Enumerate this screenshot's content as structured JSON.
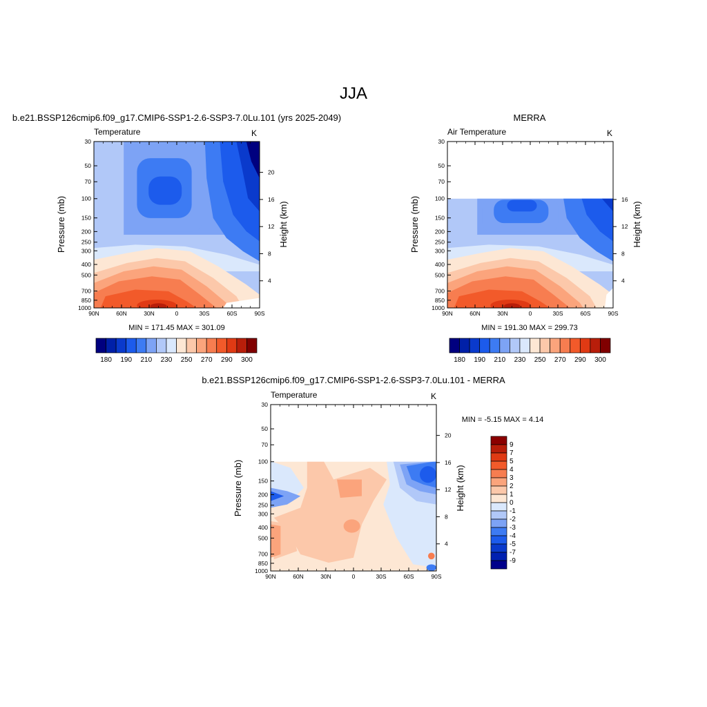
{
  "page_title": "JJA",
  "colors": {
    "abs": [
      "#00007f",
      "#0020a8",
      "#0a3acc",
      "#1c5bec",
      "#3d7bf3",
      "#7da3f5",
      "#b1c8f8",
      "#dae8fc",
      "#fde7d4",
      "#fcc8aa",
      "#fba47c",
      "#f77d50",
      "#f25a2a",
      "#e03a14",
      "#b81e0a",
      "#800000"
    ],
    "diff": [
      "#00008b",
      "#0020b0",
      "#0a3acc",
      "#1c5bec",
      "#3d7bf3",
      "#7da3f5",
      "#b1c8f8",
      "#dae8fc",
      "#fde7d4",
      "#fcc8aa",
      "#fba47c",
      "#f77d50",
      "#f25a2a",
      "#e03a14",
      "#b81e0a",
      "#8b0000"
    ]
  },
  "chart_data": [
    {
      "type": "heatmap",
      "title": "b.e21.BSSP126cmip6.f09_g17.CMIP6-SSP1-2.6-SSP3-7.0Lu.101 (yrs 2025-2049)",
      "left_label": "Temperature",
      "right_label": "K",
      "xlabel": "",
      "ylabel": "Pressure (mb)",
      "y2label": "Height (km)",
      "x_ticks": [
        "90N",
        "60N",
        "30N",
        "0",
        "30S",
        "60S",
        "90S"
      ],
      "y_ticks": [
        "30",
        "50",
        "70",
        "100",
        "150",
        "200",
        "250",
        "300",
        "400",
        "500",
        "700",
        "850",
        "1000"
      ],
      "y2_ticks": [
        "20",
        "16",
        "12",
        "8",
        "4"
      ],
      "stats": "MIN = 171.45  MAX = 301.09",
      "top_level_mb": 30,
      "colorbar_labels": [
        "180",
        "190",
        "210",
        "230",
        "250",
        "270",
        "290",
        "300"
      ],
      "colorbar_orientation": "horizontal"
    },
    {
      "type": "heatmap",
      "title": "MERRA",
      "left_label": "Air Temperature",
      "right_label": "K",
      "xlabel": "",
      "ylabel": "Pressure (mb)",
      "y2label": "Height (km)",
      "x_ticks": [
        "90N",
        "60N",
        "30N",
        "0",
        "30S",
        "60S",
        "90S"
      ],
      "y_ticks": [
        "30",
        "50",
        "70",
        "100",
        "150",
        "200",
        "250",
        "300",
        "400",
        "500",
        "700",
        "850",
        "1000"
      ],
      "y2_ticks": [
        "16",
        "12",
        "8",
        "4"
      ],
      "stats": "MIN = 191.30  MAX = 299.73",
      "top_level_mb": 100,
      "colorbar_labels": [
        "180",
        "190",
        "210",
        "230",
        "250",
        "270",
        "290",
        "300"
      ],
      "colorbar_orientation": "horizontal"
    },
    {
      "type": "heatmap",
      "title": "b.e21.BSSP126cmip6.f09_g17.CMIP6-SSP1-2.6-SSP3-7.0Lu.101 - MERRA",
      "left_label": "Temperature",
      "right_label": "K",
      "xlabel": "",
      "ylabel": "Pressure (mb)",
      "y2label": "Height (km)",
      "x_ticks": [
        "90N",
        "60N",
        "30N",
        "0",
        "30S",
        "60S",
        "90S"
      ],
      "y_ticks": [
        "30",
        "50",
        "70",
        "100",
        "150",
        "200",
        "250",
        "300",
        "400",
        "500",
        "700",
        "850",
        "1000"
      ],
      "y2_ticks": [
        "20",
        "16",
        "12",
        "8",
        "4"
      ],
      "stats": "MIN =  -5.15  MAX =   4.14",
      "top_level_mb": 100,
      "colorbar_labels": [
        "9",
        "7",
        "5",
        "4",
        "3",
        "2",
        "1",
        "0",
        "-1",
        "-2",
        "-3",
        "-4",
        "-5",
        "-7",
        "-9"
      ],
      "colorbar_orientation": "vertical"
    }
  ]
}
